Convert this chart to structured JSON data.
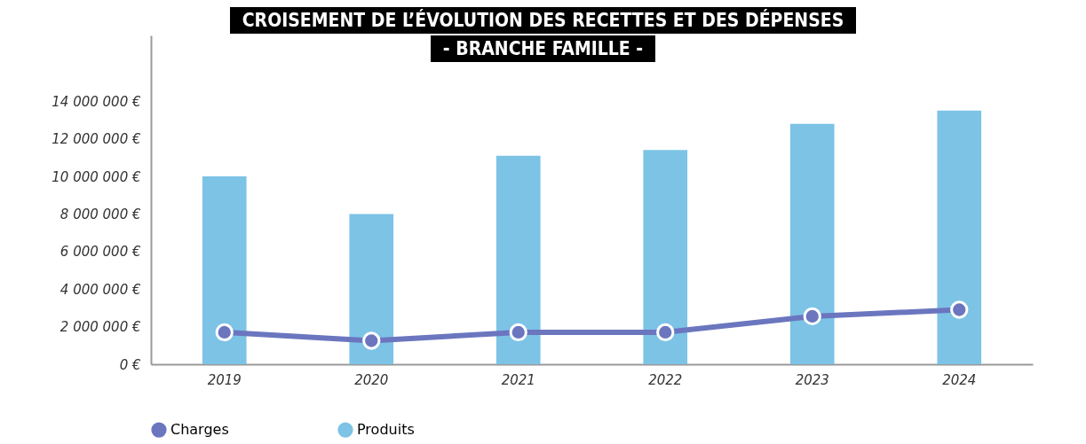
{
  "chart_data": {
    "type": "bar",
    "title": "CROISEMENT DE L’ÉVOLUTION DES RECETTES ET DES DÉPENSES",
    "subtitle": "- BRANCHE FAMILLE -",
    "categories": [
      "2019",
      "2020",
      "2021",
      "2022",
      "2023",
      "2024"
    ],
    "series": [
      {
        "name": "Charges",
        "type": "line",
        "color": "#6b76bf",
        "values": [
          1700000,
          1250000,
          1700000,
          1700000,
          2550000,
          2900000
        ]
      },
      {
        "name": "Produits",
        "color": "#7cc3e6",
        "values": [
          10000000,
          8000000,
          11100000,
          11400000,
          12800000,
          13500000
        ]
      }
    ],
    "ylim": [
      0,
      17500000
    ],
    "yticks": [
      {
        "value": 0,
        "label": "0 €"
      },
      {
        "value": 2000000,
        "label": "2 000 000 €"
      },
      {
        "value": 4000000,
        "label": "4 000 000 €"
      },
      {
        "value": 6000000,
        "label": "6 000 000 €"
      },
      {
        "value": 8000000,
        "label": "8 000 000 €"
      },
      {
        "value": 10000000,
        "label": "10 000 000 €"
      },
      {
        "value": 12000000,
        "label": "12 000 000 €"
      },
      {
        "value": 14000000,
        "label": "14 000 000 €"
      }
    ],
    "grid": false,
    "legend": "bottom",
    "marker": "circle"
  }
}
